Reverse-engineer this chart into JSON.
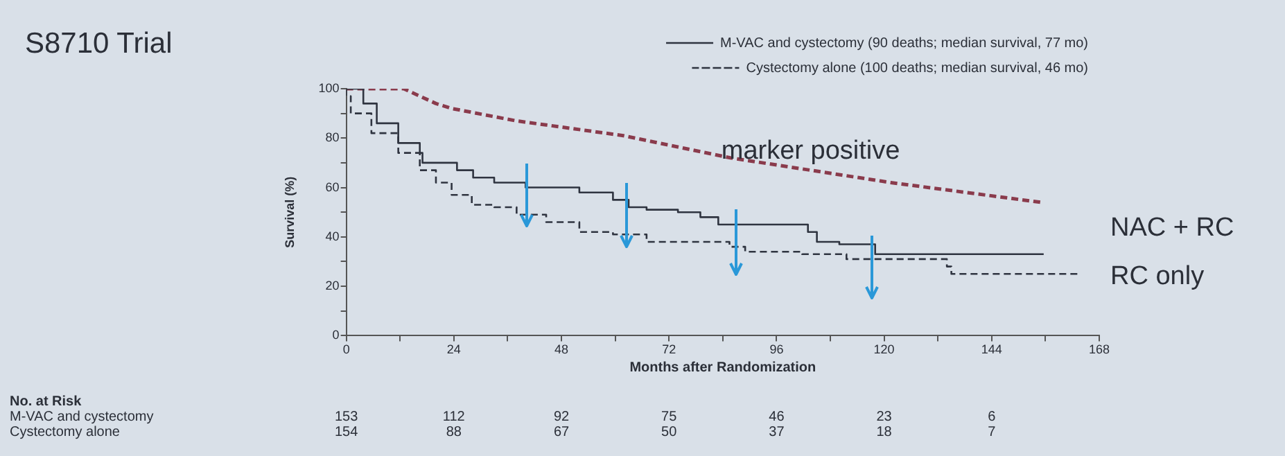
{
  "chart_data": {
    "type": "step",
    "title": "S8710 Trial",
    "xlabel": "Months after Randomization",
    "ylabel": "Survival (%)",
    "xlim": [
      0,
      168
    ],
    "xticks": [
      0,
      {
        "value": 12,
        "label": null
      },
      24,
      {
        "value": 36,
        "label": null
      },
      48,
      {
        "value": 60,
        "label": null
      },
      72,
      {
        "value": 84,
        "label": null
      },
      96,
      {
        "value": 108,
        "label": null
      },
      120,
      {
        "value": 132,
        "label": null
      },
      144,
      {
        "value": 156,
        "label": null
      },
      168
    ],
    "ylim": [
      0,
      100
    ],
    "yticks": [
      0,
      {
        "value": 10,
        "label": null
      },
      20,
      {
        "value": 30,
        "label": null
      },
      40,
      {
        "value": 50,
        "label": null
      },
      60,
      {
        "value": 70,
        "label": null
      },
      80,
      {
        "value": 90,
        "label": null
      },
      100
    ],
    "grid": false,
    "legend": "top right",
    "marker": "none",
    "series": [
      {
        "name": "M-VAC and cystectomy (90 deaths; median survival, 77 mo)",
        "color": "#2f3440",
        "line_style": "solid",
        "x": [
          0,
          3.8,
          6.8,
          11.6,
          16.4,
          17,
          24.7,
          28.3,
          33,
          40,
          52,
          59.5,
          63,
          67,
          74,
          79,
          83,
          88,
          103,
          105,
          110,
          118,
          139,
          155.6
        ],
        "values": [
          100,
          100,
          94,
          86,
          78,
          74,
          70,
          67,
          64,
          62,
          60,
          58,
          55,
          52,
          51,
          50,
          48,
          45,
          45,
          42,
          38,
          37,
          33,
          33
        ]
      },
      {
        "name": "Cystectomy alone (100 deaths; median survival, 46 mo)",
        "color": "#2f3440",
        "line_style": "dashed",
        "x": [
          0,
          1,
          5.6,
          11.6,
          16.4,
          20,
          23.5,
          28,
          33,
          38,
          44.6,
          52,
          59.5,
          67,
          74,
          85.5,
          89,
          101.7,
          111.6,
          118,
          134,
          135,
          137.6,
          163.7
        ],
        "values": [
          100,
          97,
          90,
          82,
          74,
          67,
          62,
          57,
          53,
          52,
          49,
          46,
          42,
          41,
          38,
          38,
          36,
          34,
          33,
          31,
          31,
          28,
          25,
          25
        ]
      },
      {
        "name": "marker positive",
        "type": "line",
        "color": "#8a3b4c",
        "line_style": "dashed",
        "x": [
          0,
          12.8,
          20,
          23.5,
          37.9,
          61.8,
          85.7,
          103.6,
          121.5,
          155
        ],
        "values": [
          100,
          100,
          94,
          92,
          87,
          81,
          72,
          67,
          62,
          54
        ]
      }
    ],
    "annotations": [
      "NAC + RC",
      "RC only",
      "No. at Risk",
      "M-VAC and cystectomy",
      "153",
      "112",
      "92",
      "75",
      "46",
      "23",
      "6",
      "Cystectomy alone",
      "154",
      "88",
      "67",
      "50",
      "37",
      "18",
      "7"
    ]
  }
}
